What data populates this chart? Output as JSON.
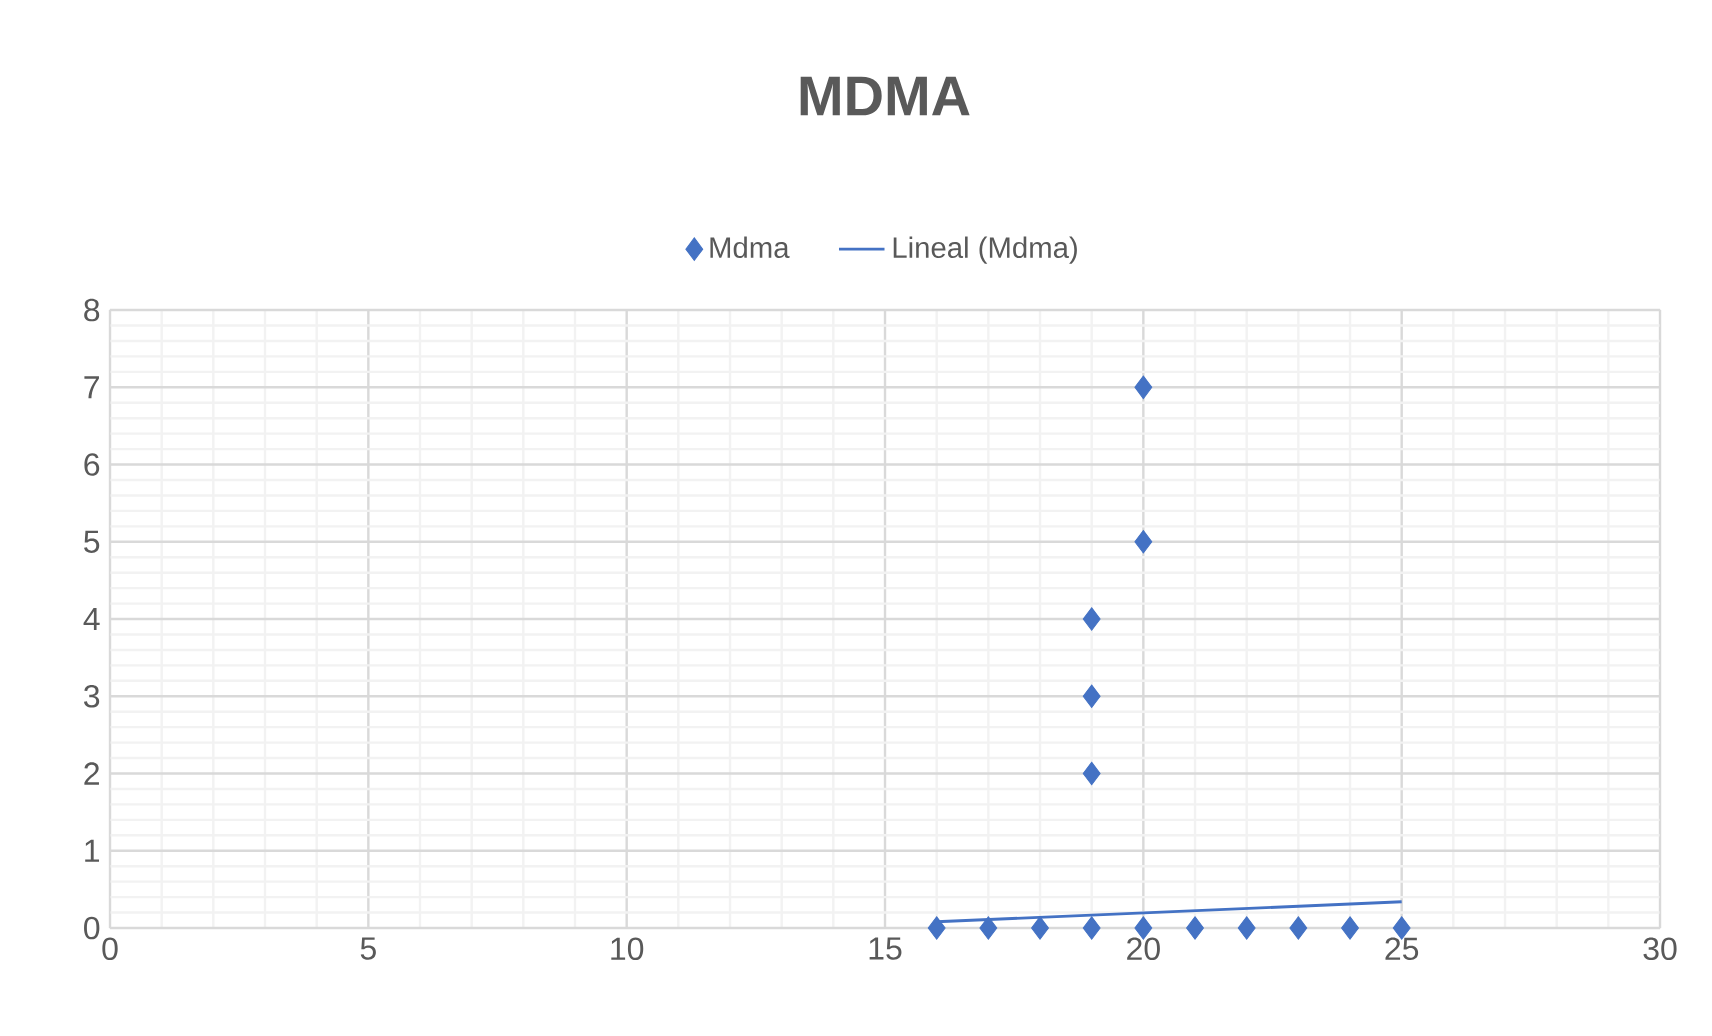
{
  "chart_data": {
    "type": "scatter",
    "title": "MDMA",
    "series": [
      {
        "name": "Mdma",
        "color": "#4472c4",
        "marker": "diamond",
        "x": [
          16,
          17,
          18,
          19,
          20,
          21,
          22,
          23,
          24,
          25,
          19,
          19,
          19,
          20,
          20
        ],
        "values": [
          0,
          0,
          0,
          0,
          0,
          0,
          0,
          0,
          0,
          0,
          2,
          3,
          4,
          5,
          7
        ]
      },
      {
        "name": "Lineal (Mdma)",
        "type": "line",
        "color": "#4472c4",
        "marker": "none",
        "line_style": "solid",
        "x": [
          16,
          25
        ],
        "values": [
          0.08,
          0.34
        ]
      }
    ],
    "xlim": [
      0,
      30
    ],
    "xticks": [
      0,
      5,
      10,
      15,
      20,
      25,
      30
    ],
    "ylim": [
      0,
      8
    ],
    "yticks": [
      0,
      1,
      2,
      3,
      4,
      5,
      6,
      7,
      8
    ],
    "grid": true,
    "legend": "top"
  }
}
